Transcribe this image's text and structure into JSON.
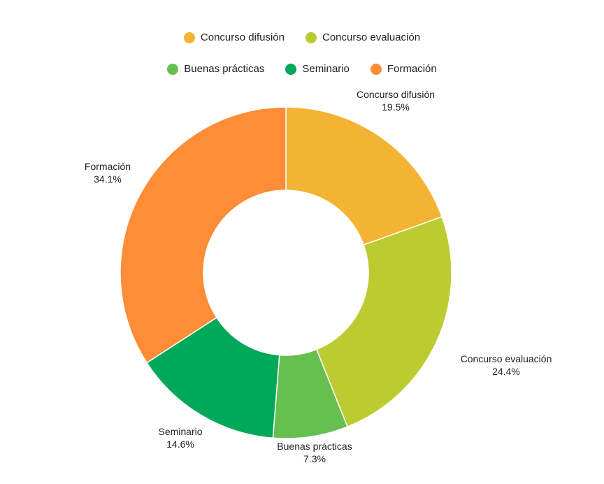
{
  "chart_data": {
    "type": "pie",
    "donut": true,
    "title": "",
    "legend_position": "top",
    "slices": [
      {
        "label": "Concurso difusión",
        "value": 19.5,
        "display": "19.5%",
        "color": "#F5B335"
      },
      {
        "label": "Concurso evaluación",
        "value": 24.4,
        "display": "24.4%",
        "color": "#BBCB30"
      },
      {
        "label": "Buenas prácticas",
        "value": 7.3,
        "display": "7.3%",
        "color": "#66C04F"
      },
      {
        "label": "Seminario",
        "value": 14.6,
        "display": "14.6%",
        "color": "#00A85A"
      },
      {
        "label": "Formación",
        "value": 34.1,
        "display": "34.1%",
        "color": "#FF8C36"
      }
    ]
  }
}
